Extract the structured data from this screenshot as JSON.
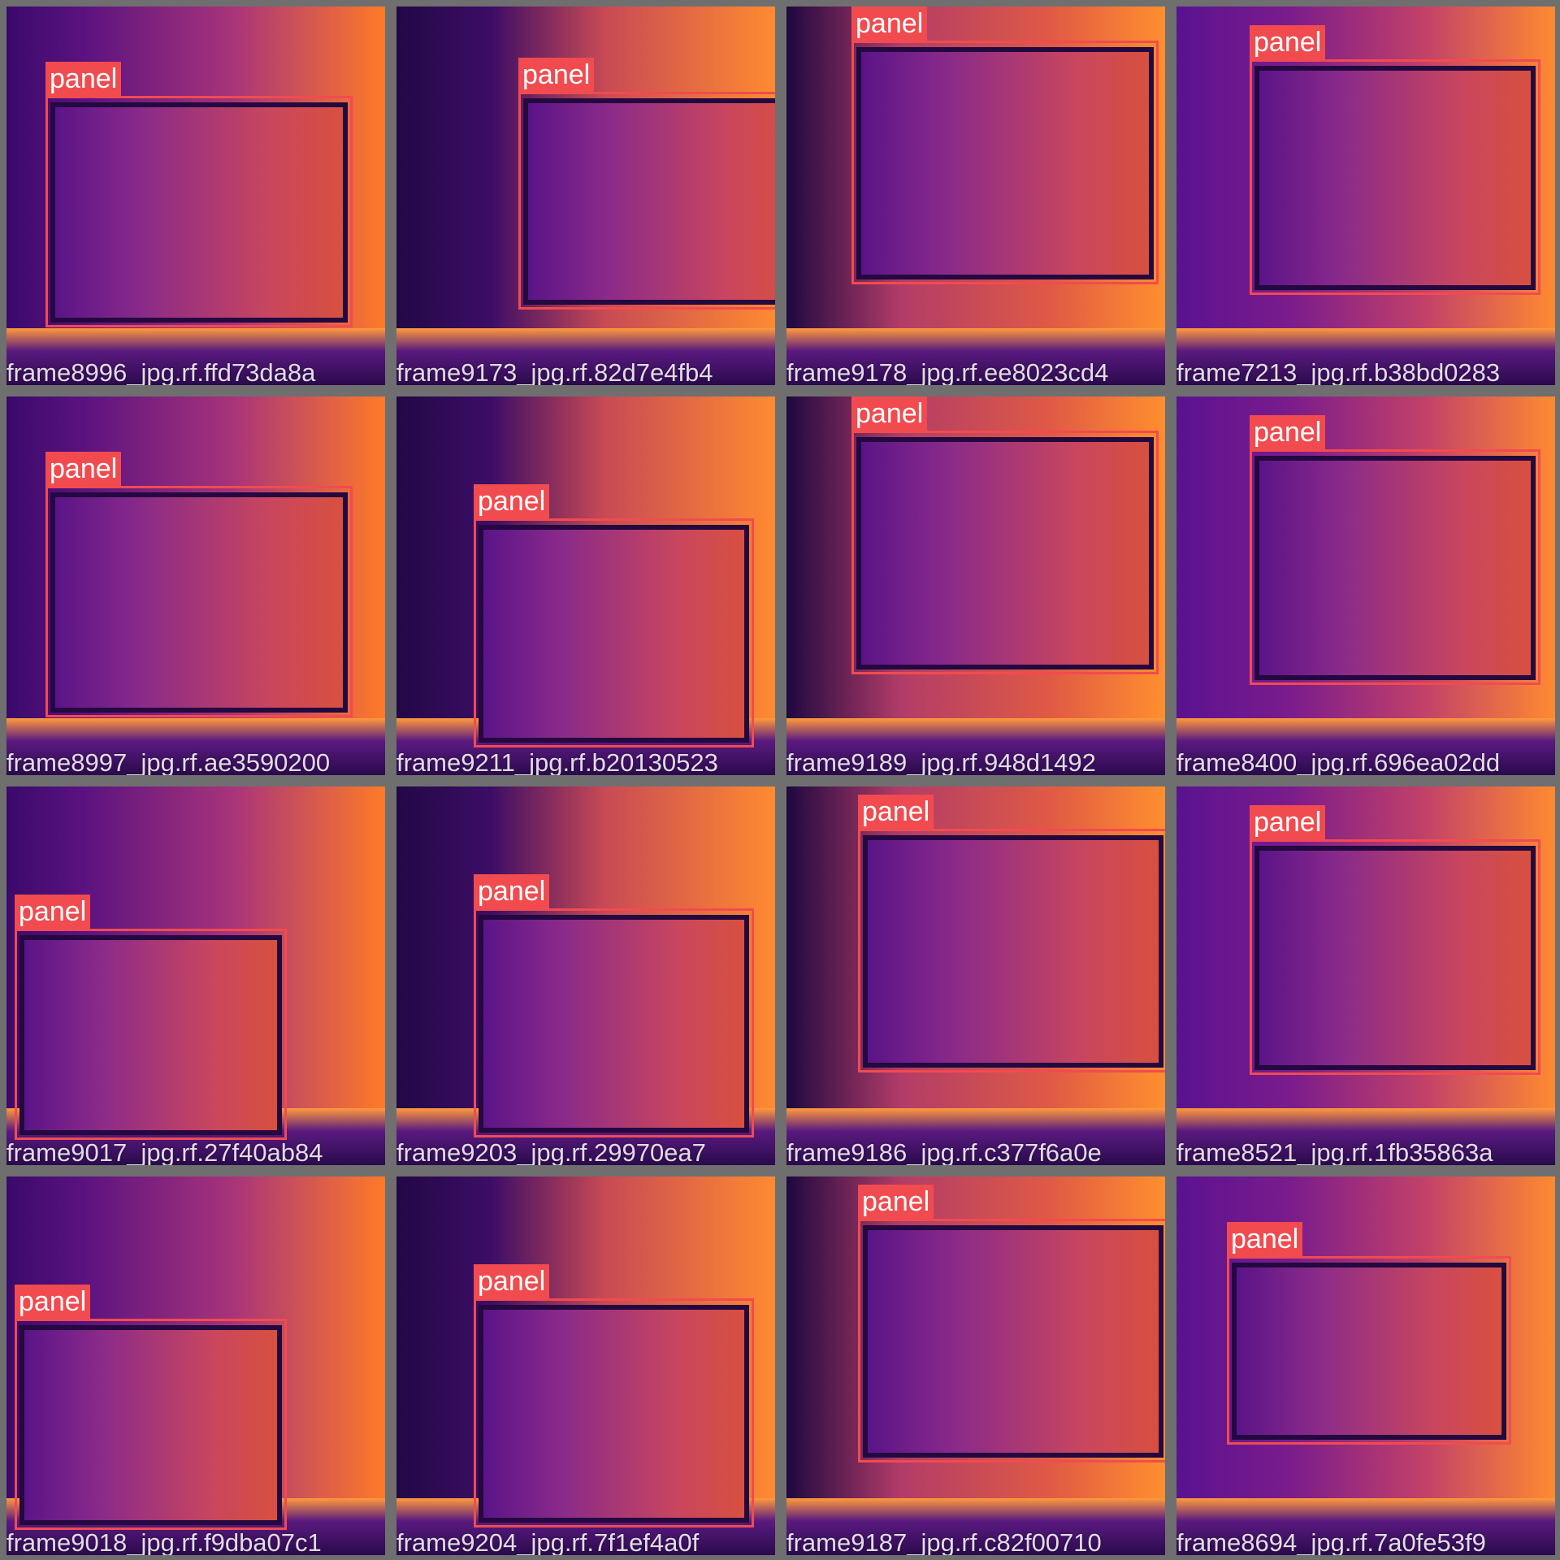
{
  "colors": {
    "background": "#6f6f6f",
    "box": "#f14b4f",
    "label_text": "#ffffff"
  },
  "tiles": [
    {
      "caption": "frame8996_jpg.rf.ffd73da8a",
      "label": "panel"
    },
    {
      "caption": "frame9173_jpg.rf.82d7e4fb4",
      "label": "panel"
    },
    {
      "caption": "frame9178_jpg.rf.ee8023cd4",
      "label": "panel"
    },
    {
      "caption": "frame7213_jpg.rf.b38bd0283",
      "label": "panel"
    },
    {
      "caption": "frame8997_jpg.rf.ae3590200",
      "label": "panel"
    },
    {
      "caption": "frame9211_jpg.rf.b20130523",
      "label": "panel"
    },
    {
      "caption": "frame9189_jpg.rf.948d1492",
      "label": "panel"
    },
    {
      "caption": "frame8400_jpg.rf.696ea02dd",
      "label": "panel"
    },
    {
      "caption": "frame9017_jpg.rf.27f40ab84",
      "label": "panel"
    },
    {
      "caption": "frame9203_jpg.rf.29970ea7",
      "label": "panel"
    },
    {
      "caption": "frame9186_jpg.rf.c377f6a0e",
      "label": "panel"
    },
    {
      "caption": "frame8521_jpg.rf.1fb35863a",
      "label": "panel"
    },
    {
      "caption": "frame9018_jpg.rf.f9dba07c1",
      "label": "panel"
    },
    {
      "caption": "frame9204_jpg.rf.7f1ef4a0f",
      "label": "panel"
    },
    {
      "caption": "frame9187_jpg.rf.c82f00710",
      "label": "panel"
    },
    {
      "caption": "frame8694_jpg.rf.7a0fe53f9",
      "label": "panel"
    }
  ]
}
